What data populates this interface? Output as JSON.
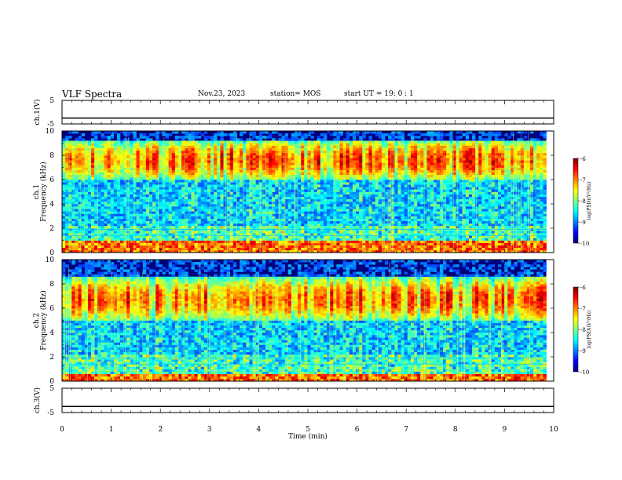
{
  "header": {
    "title": "VLF Spectra",
    "date": "Nov.23, 2023",
    "station": "station= MOS",
    "start_ut": "start  UT =   19: 0  : 1"
  },
  "chart_data": [
    {
      "type": "line",
      "title": "",
      "ylabel": "ch.1(V)",
      "ylim": [
        -5,
        5
      ],
      "yticks": [
        "5",
        "-5"
      ],
      "xlim": [
        0,
        10
      ],
      "series": [
        {
          "values": [
            -2.5,
            -2.5
          ]
        }
      ]
    },
    {
      "type": "heatmap",
      "ylabel": "ch.1 Frequency (kHz)",
      "ylim": [
        0,
        10
      ],
      "yticks": [
        "0",
        "2",
        "4",
        "6",
        "8",
        "10"
      ],
      "xlim": [
        0,
        10
      ],
      "data_extent_min": 9.85,
      "colorbar": {
        "label": "log(PSD)(V²/Hz)",
        "range": [
          -10,
          -6
        ],
        "ticks": [
          "-6",
          "-7",
          "-8",
          "-9",
          "-10"
        ],
        "colormap": "jet"
      },
      "intense_bands_khz": [
        [
          0,
          1.0
        ],
        [
          6.0,
          9.2
        ]
      ]
    },
    {
      "type": "heatmap",
      "ylabel": "ch.2 Frequency (kHz)",
      "ylim": [
        0,
        10
      ],
      "yticks": [
        "0",
        "2",
        "4",
        "6",
        "8",
        "10"
      ],
      "xlim": [
        0,
        10
      ],
      "data_extent_min": 9.85,
      "colorbar": {
        "label": "log(PSD)(V²/Hz)",
        "range": [
          -10,
          -6
        ],
        "ticks": [
          "-6",
          "-7",
          "-8",
          "-9",
          "-10"
        ],
        "colormap": "jet"
      },
      "intense_bands_khz": [
        [
          0,
          0.6
        ],
        [
          5.0,
          8.5
        ]
      ]
    },
    {
      "type": "line",
      "ylabel": "ch.3(V)",
      "ylim": [
        -5,
        5
      ],
      "yticks": [
        "5",
        "-5"
      ],
      "xlim": [
        0,
        10
      ],
      "xlabel": "Time  (min)",
      "xticks": [
        "0",
        "1",
        "2",
        "3",
        "4",
        "5",
        "6",
        "7",
        "8",
        "9",
        "10"
      ],
      "series": [
        {
          "values": [
            -2.5,
            -2.5
          ]
        }
      ]
    }
  ]
}
